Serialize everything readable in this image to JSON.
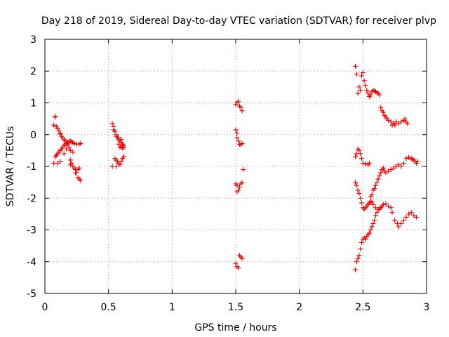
{
  "chart_data": {
    "type": "scatter",
    "title": "Day 218 of 2019, Sidereal Day-to-day VTEC variation (SDTVAR) for receiver plvp",
    "xlabel": "GPS time / hours",
    "ylabel": "SDTVAR / TECUs",
    "xlim": [
      0,
      3
    ],
    "ylim": [
      -5,
      3
    ],
    "xticks": [
      0,
      0.5,
      1,
      1.5,
      2,
      2.5,
      3
    ],
    "xtick_labels": [
      "0",
      "0.5",
      "1",
      "1.5",
      "2",
      "2.5",
      "3"
    ],
    "yticks": [
      -5,
      -4,
      -3,
      -2,
      -1,
      0,
      1,
      2,
      3
    ],
    "ytick_labels": [
      "-5",
      "-4",
      "-3",
      "-2",
      "-1",
      "0",
      "1",
      "2",
      "3"
    ],
    "grid": true,
    "marker": "+",
    "color": "#e00000",
    "series": [
      {
        "name": "SDTVAR",
        "points": [
          [
            0.07,
            0.3
          ],
          [
            0.08,
            0.58
          ],
          [
            0.08,
            0.55
          ],
          [
            0.09,
            0.25
          ],
          [
            0.1,
            0.2
          ],
          [
            0.11,
            0.12
          ],
          [
            0.12,
            0.05
          ],
          [
            0.12,
            0.02
          ],
          [
            0.13,
            -0.05
          ],
          [
            0.14,
            -0.1
          ],
          [
            0.15,
            -0.15
          ],
          [
            0.16,
            -0.2
          ],
          [
            0.17,
            -0.25
          ],
          [
            0.18,
            -0.3
          ],
          [
            0.19,
            -0.4
          ],
          [
            0.2,
            -0.5
          ],
          [
            0.2,
            -0.8
          ],
          [
            0.21,
            -0.9
          ],
          [
            0.22,
            -1.0
          ],
          [
            0.23,
            -1.05
          ],
          [
            0.24,
            -1.1
          ],
          [
            0.25,
            -1.2
          ],
          [
            0.26,
            -1.35
          ],
          [
            0.27,
            -1.4
          ],
          [
            0.28,
            -1.45
          ],
          [
            0.07,
            -0.9
          ],
          [
            0.08,
            -0.7
          ],
          [
            0.09,
            -0.65
          ],
          [
            0.1,
            -0.6
          ],
          [
            0.11,
            -0.55
          ],
          [
            0.12,
            -0.5
          ],
          [
            0.13,
            -0.45
          ],
          [
            0.14,
            -0.4
          ],
          [
            0.15,
            -0.35
          ],
          [
            0.16,
            -0.3
          ],
          [
            0.17,
            -0.28
          ],
          [
            0.18,
            -0.25
          ],
          [
            0.19,
            -0.22
          ],
          [
            0.2,
            -0.2
          ],
          [
            0.21,
            -0.23
          ],
          [
            0.22,
            -0.25
          ],
          [
            0.23,
            -0.28
          ],
          [
            0.25,
            -0.3
          ],
          [
            0.27,
            -0.3
          ],
          [
            0.28,
            -0.28
          ],
          [
            0.1,
            -0.9
          ],
          [
            0.12,
            -0.85
          ],
          [
            0.15,
            -0.6
          ],
          [
            0.17,
            -0.45
          ],
          [
            0.2,
            -0.95
          ],
          [
            0.22,
            -0.55
          ],
          [
            0.24,
            -1.2
          ],
          [
            0.26,
            -1.1
          ],
          [
            0.27,
            -1.05
          ],
          [
            0.53,
            0.35
          ],
          [
            0.54,
            0.25
          ],
          [
            0.54,
            0.15
          ],
          [
            0.55,
            0.1
          ],
          [
            0.56,
            0.0
          ],
          [
            0.56,
            -0.05
          ],
          [
            0.57,
            -0.1
          ],
          [
            0.58,
            -0.15
          ],
          [
            0.59,
            -0.2
          ],
          [
            0.6,
            -0.25
          ],
          [
            0.61,
            -0.3
          ],
          [
            0.62,
            -0.35
          ],
          [
            0.58,
            -0.3
          ],
          [
            0.59,
            -0.4
          ],
          [
            0.6,
            -0.38
          ],
          [
            0.61,
            -0.42
          ],
          [
            0.62,
            -0.4
          ],
          [
            0.55,
            -0.75
          ],
          [
            0.56,
            -0.8
          ],
          [
            0.57,
            -0.85
          ],
          [
            0.58,
            -0.9
          ],
          [
            0.59,
            -0.95
          ],
          [
            0.6,
            -0.85
          ],
          [
            0.61,
            -0.75
          ],
          [
            0.62,
            -0.7
          ],
          [
            0.53,
            -1.0
          ],
          [
            0.56,
            -1.0
          ],
          [
            0.58,
            -0.1
          ],
          [
            0.6,
            -0.15
          ],
          [
            1.5,
            0.95
          ],
          [
            1.51,
            1.0
          ],
          [
            1.52,
            1.05
          ],
          [
            1.53,
            0.9
          ],
          [
            1.54,
            0.85
          ],
          [
            1.55,
            0.75
          ],
          [
            1.5,
            0.15
          ],
          [
            1.51,
            0.05
          ],
          [
            1.51,
            -0.1
          ],
          [
            1.52,
            -0.2
          ],
          [
            1.53,
            -0.3
          ],
          [
            1.54,
            -0.32
          ],
          [
            1.55,
            -0.28
          ],
          [
            1.56,
            -1.1
          ],
          [
            1.5,
            -1.55
          ],
          [
            1.51,
            -1.6
          ],
          [
            1.52,
            -1.75
          ],
          [
            1.53,
            -1.65
          ],
          [
            1.54,
            -1.55
          ],
          [
            1.55,
            -1.5
          ],
          [
            1.51,
            -1.8
          ],
          [
            1.5,
            -4.05
          ],
          [
            1.51,
            -4.15
          ],
          [
            1.52,
            -4.2
          ],
          [
            1.53,
            -3.8
          ],
          [
            1.54,
            -3.85
          ],
          [
            1.55,
            -3.9
          ],
          [
            2.44,
            2.15
          ],
          [
            2.45,
            1.9
          ],
          [
            2.46,
            1.3
          ],
          [
            2.47,
            1.5
          ],
          [
            2.48,
            1.4
          ],
          [
            2.49,
            1.85
          ],
          [
            2.5,
            1.95
          ],
          [
            2.51,
            1.7
          ],
          [
            2.52,
            1.55
          ],
          [
            2.53,
            1.4
          ],
          [
            2.54,
            1.3
          ],
          [
            2.55,
            1.2
          ],
          [
            2.56,
            1.25
          ],
          [
            2.57,
            1.35
          ],
          [
            2.58,
            1.4
          ],
          [
            2.59,
            1.38
          ],
          [
            2.6,
            1.35
          ],
          [
            2.61,
            1.32
          ],
          [
            2.62,
            1.3
          ],
          [
            2.63,
            1.25
          ],
          [
            2.64,
            0.85
          ],
          [
            2.65,
            0.75
          ],
          [
            2.66,
            0.7
          ],
          [
            2.67,
            0.6
          ],
          [
            2.68,
            0.55
          ],
          [
            2.69,
            0.5
          ],
          [
            2.7,
            0.45
          ],
          [
            2.72,
            0.4
          ],
          [
            2.73,
            0.3
          ],
          [
            2.74,
            0.35
          ],
          [
            2.75,
            0.3
          ],
          [
            2.76,
            0.4
          ],
          [
            2.78,
            0.35
          ],
          [
            2.8,
            0.4
          ],
          [
            2.82,
            0.45
          ],
          [
            2.83,
            0.5
          ],
          [
            2.84,
            0.4
          ],
          [
            2.85,
            0.35
          ],
          [
            2.44,
            -0.7
          ],
          [
            2.45,
            -0.6
          ],
          [
            2.46,
            -0.45
          ],
          [
            2.47,
            -0.5
          ],
          [
            2.48,
            -0.6
          ],
          [
            2.49,
            -0.75
          ],
          [
            2.5,
            -0.9
          ],
          [
            2.52,
            -0.92
          ],
          [
            2.54,
            -0.95
          ],
          [
            2.55,
            -0.9
          ],
          [
            2.56,
            -1.95
          ],
          [
            2.57,
            -1.9
          ],
          [
            2.58,
            -1.75
          ],
          [
            2.59,
            -1.7
          ],
          [
            2.6,
            -1.6
          ],
          [
            2.61,
            -1.5
          ],
          [
            2.62,
            -1.4
          ],
          [
            2.63,
            -1.3
          ],
          [
            2.64,
            -1.2
          ],
          [
            2.65,
            -1.1
          ],
          [
            2.66,
            -1.05
          ],
          [
            2.67,
            -1.15
          ],
          [
            2.68,
            -1.2
          ],
          [
            2.7,
            -1.15
          ],
          [
            2.72,
            -1.1
          ],
          [
            2.74,
            -1.05
          ],
          [
            2.76,
            -1.0
          ],
          [
            2.78,
            -0.95
          ],
          [
            2.8,
            -1.0
          ],
          [
            2.82,
            -0.9
          ],
          [
            2.84,
            -0.75
          ],
          [
            2.86,
            -0.72
          ],
          [
            2.88,
            -0.75
          ],
          [
            2.89,
            -0.78
          ],
          [
            2.9,
            -0.8
          ],
          [
            2.91,
            -0.85
          ],
          [
            2.92,
            -0.9
          ],
          [
            2.93,
            -0.85
          ],
          [
            2.44,
            -1.5
          ],
          [
            2.45,
            -1.6
          ],
          [
            2.46,
            -1.75
          ],
          [
            2.47,
            -1.85
          ],
          [
            2.48,
            -2.0
          ],
          [
            2.49,
            -2.15
          ],
          [
            2.5,
            -2.3
          ],
          [
            2.51,
            -2.35
          ],
          [
            2.52,
            -2.3
          ],
          [
            2.53,
            -2.25
          ],
          [
            2.54,
            -2.2
          ],
          [
            2.55,
            -2.15
          ],
          [
            2.56,
            -2.1
          ],
          [
            2.57,
            -2.12
          ],
          [
            2.58,
            -2.2
          ],
          [
            2.6,
            -2.3
          ],
          [
            2.62,
            -2.35
          ],
          [
            2.64,
            -2.3
          ],
          [
            2.65,
            -2.25
          ],
          [
            2.66,
            -2.2
          ],
          [
            2.68,
            -2.18
          ],
          [
            2.7,
            -2.25
          ],
          [
            2.72,
            -2.3
          ],
          [
            2.73,
            -2.45
          ],
          [
            2.75,
            -2.7
          ],
          [
            2.77,
            -2.8
          ],
          [
            2.78,
            -2.9
          ],
          [
            2.8,
            -2.8
          ],
          [
            2.82,
            -2.7
          ],
          [
            2.84,
            -2.6
          ],
          [
            2.86,
            -2.5
          ],
          [
            2.88,
            -2.45
          ],
          [
            2.9,
            -2.55
          ],
          [
            2.92,
            -2.6
          ],
          [
            2.44,
            -4.25
          ],
          [
            2.45,
            -4.0
          ],
          [
            2.46,
            -3.9
          ],
          [
            2.47,
            -3.8
          ],
          [
            2.48,
            -3.6
          ],
          [
            2.49,
            -3.4
          ],
          [
            2.5,
            -3.3
          ],
          [
            2.51,
            -3.25
          ],
          [
            2.52,
            -3.3
          ],
          [
            2.53,
            -3.2
          ],
          [
            2.54,
            -3.15
          ],
          [
            2.55,
            -3.1
          ],
          [
            2.56,
            -3.0
          ],
          [
            2.57,
            -2.9
          ],
          [
            2.58,
            -2.8
          ],
          [
            2.59,
            -2.7
          ],
          [
            2.6,
            -2.55
          ],
          [
            2.61,
            -2.45
          ],
          [
            2.62,
            -2.35
          ],
          [
            2.63,
            -2.35
          ],
          [
            2.64,
            -2.3
          ]
        ]
      }
    ]
  }
}
